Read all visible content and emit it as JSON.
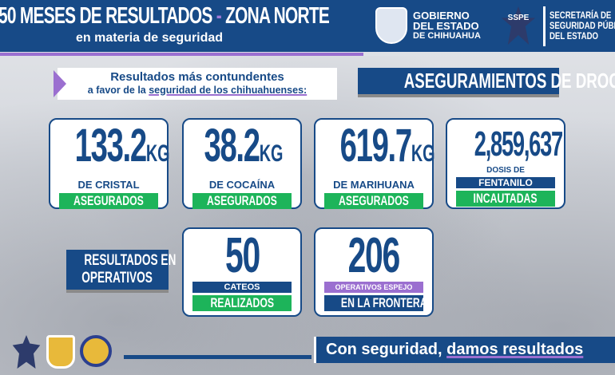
{
  "header": {
    "title_part1": "50 MESES DE RESULTADOS",
    "title_dash": "-",
    "title_part2": "ZONA NORTE",
    "subtitle": "en materia de seguridad",
    "gob_lines": [
      "GOBIERNO",
      "DEL ESTADO",
      "DE CHIHUAHUA"
    ],
    "sspe_badge": "SSPE",
    "sspe_lines": [
      "SECRETARÍA DE",
      "SEGURIDAD PÚBLICA",
      "DEL ESTADO"
    ]
  },
  "intro": {
    "line1": "Resultados más contundentes",
    "line2_a": "a favor de la ",
    "line2_u": "seguridad de los chihuahuenses:"
  },
  "drugs_heading": "ASEGURAMIENTOS DE DROGAS",
  "drug_cards": [
    {
      "value": "133.2",
      "unit": "KG",
      "label": "DE CRISTAL",
      "status": "ASEGURADOS"
    },
    {
      "value": "38.2",
      "unit": "KG",
      "label": "DE COCAÍNA",
      "status": "ASEGURADOS"
    },
    {
      "value": "619.7",
      "unit": "KG",
      "label": "DE MARIHUANA",
      "status": "ASEGURADOS"
    },
    {
      "value": "2,859,637",
      "label": "DOSIS DE",
      "label2": "FENTANILO",
      "status": "INCAUTADAS"
    }
  ],
  "operations_heading": [
    "RESULTADOS EN",
    "OPERATIVOS"
  ],
  "op_cards": [
    {
      "value": "50",
      "label": "CATEOS",
      "status": "REALIZADOS"
    },
    {
      "value": "206",
      "label": "OPERATIVOS ESPEJO",
      "status": "EN LA FRONTERA"
    }
  ],
  "footer": {
    "slogan_a": "Con seguridad, ",
    "slogan_u": "damos resultados",
    "logos": [
      "SSPE",
      "CALEA",
      "CALEA"
    ]
  },
  "colors": {
    "brand_blue": "#174a87",
    "green": "#1db45a",
    "purple": "#9b6fd0"
  }
}
